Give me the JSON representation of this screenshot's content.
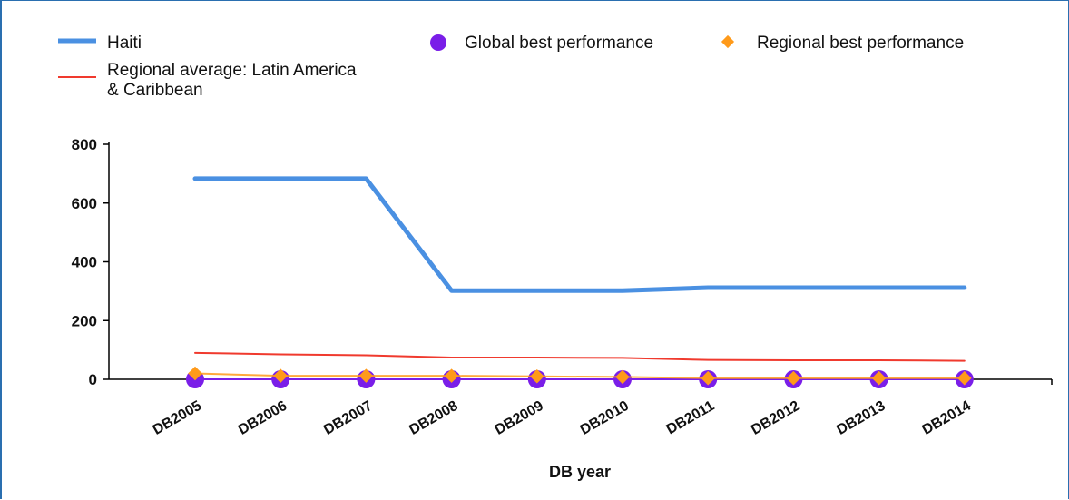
{
  "chart_data": {
    "type": "line",
    "categories": [
      "DB2005",
      "DB2006",
      "DB2007",
      "DB2008",
      "DB2009",
      "DB2010",
      "DB2011",
      "DB2012",
      "DB2013",
      "DB2014"
    ],
    "series": [
      {
        "name": "Haiti",
        "values": [
          683,
          683,
          683,
          302,
          302,
          302,
          312,
          312,
          312,
          312
        ],
        "color": "#4a90e2",
        "style": "thick-line"
      },
      {
        "name": "Regional average: Latin America & Caribbean",
        "name_lines": [
          "Regional average: Latin America",
          "& Caribbean"
        ],
        "values": [
          90,
          85,
          82,
          74,
          74,
          73,
          66,
          65,
          65,
          63
        ],
        "color": "#f03a2e",
        "style": "thin-line"
      },
      {
        "name": "Global best performance",
        "values": [
          0,
          0,
          0,
          0,
          0,
          0,
          0,
          0,
          0,
          0
        ],
        "color": "#7a1ee8",
        "style": "circle-marker"
      },
      {
        "name": "Regional best performance",
        "values": [
          20,
          12,
          12,
          12,
          10,
          8,
          4,
          4,
          4,
          4
        ],
        "color": "#ff9a1a",
        "style": "diamond-marker"
      }
    ],
    "title": "",
    "xlabel": "DB year",
    "ylabel": "",
    "ylim": [
      0,
      800
    ],
    "yticks": [
      "0",
      "200",
      "400",
      "600",
      "800"
    ],
    "grid": false,
    "legend_position": "top"
  }
}
